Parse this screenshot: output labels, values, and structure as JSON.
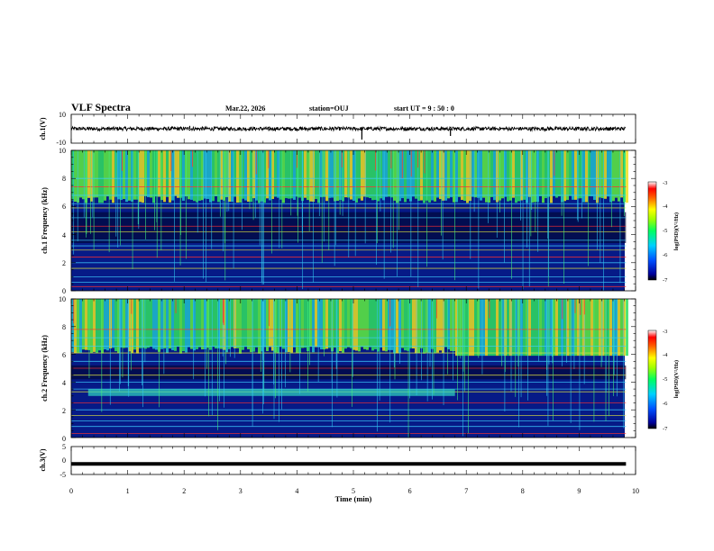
{
  "header": {
    "title": "VLF Spectra",
    "date": "Mar.22, 2026",
    "station": "station=OUJ",
    "start_ut": "start UT =  9 : 50 : 0"
  },
  "chart_data": [
    {
      "type": "line",
      "name": "ch1-waveform",
      "ylabel": "ch.1(V)",
      "ylim": [
        -10,
        10
      ],
      "y_ticks": [
        "10",
        "-10"
      ],
      "x_range_min": [
        0,
        9.83
      ],
      "baseline": 0,
      "spikes": [
        {
          "x": 3.5,
          "y": -1.5
        },
        {
          "x": 5.15,
          "y": -7.5
        },
        {
          "x": 6.72,
          "y": -5
        },
        {
          "x": 2.1,
          "y": 2
        }
      ]
    },
    {
      "type": "heatmap",
      "name": "ch1-spectrogram",
      "ylabel": "ch.1 Frequency (kHz)",
      "ylim": [
        0,
        10
      ],
      "y_ticks": [
        "0",
        "2",
        "4",
        "6",
        "8",
        "10"
      ],
      "colorbar": {
        "label": "log(PSD)(V²/Hz)",
        "range": [
          -7,
          -3
        ],
        "ticks": [
          "-3",
          "-4",
          "-5",
          "-6",
          "-7"
        ]
      }
    },
    {
      "type": "heatmap",
      "name": "ch2-spectrogram",
      "ylabel": "ch.2 Frequency (kHz)",
      "ylim": [
        0,
        10
      ],
      "y_ticks": [
        "0",
        "2",
        "4",
        "6",
        "8",
        "10"
      ],
      "colorbar": {
        "label": "log(PSD)(V²/Hz)",
        "range": [
          -7,
          -3
        ],
        "ticks": [
          "-3",
          "-4",
          "-5",
          "-6",
          "-7"
        ]
      }
    },
    {
      "type": "line",
      "name": "ch3-waveform",
      "ylabel": "ch.3(V)",
      "ylim": [
        -5,
        5
      ],
      "y_ticks": [
        "5",
        "0",
        "-5"
      ],
      "x_range_min": [
        0,
        9.83
      ],
      "level": -1.2
    }
  ],
  "x_axis": {
    "label": "Time  (min)",
    "range": [
      0,
      10
    ],
    "ticks": [
      "0",
      "1",
      "2",
      "3",
      "4",
      "5",
      "6",
      "7",
      "8",
      "9",
      "10"
    ]
  }
}
